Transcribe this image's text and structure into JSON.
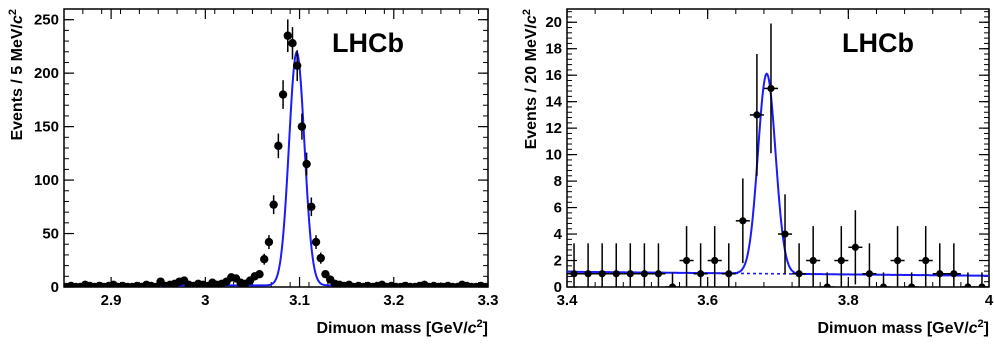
{
  "chart_data": [
    {
      "type": "scatter",
      "panel": "left",
      "title": "",
      "annotation": "LHCb",
      "xlabel": "Dimuon mass [GeV/c²]",
      "ylabel": "Events / 5 MeV/c²",
      "xlim": [
        2.85,
        3.3
      ],
      "ylim": [
        0,
        260
      ],
      "x_ticks": [
        2.9,
        3.0,
        3.1,
        3.2,
        3.3
      ],
      "x_tick_labels": [
        "2.9",
        "3",
        "3.1",
        "3.2",
        "3.3"
      ],
      "y_ticks": [
        0,
        50,
        100,
        150,
        200,
        250
      ],
      "y_tick_labels": [
        "0",
        "50",
        "100",
        "150",
        "200",
        "250"
      ],
      "series": [
        {
          "kind": "data",
          "color": "#000000",
          "x": [
            2.8525,
            2.8575,
            2.8625,
            2.8675,
            2.8725,
            2.8775,
            2.8825,
            2.8875,
            2.8925,
            2.8975,
            2.9025,
            2.9075,
            2.9125,
            2.9175,
            2.9225,
            2.9275,
            2.9325,
            2.9375,
            2.9425,
            2.9475,
            2.9525,
            2.9575,
            2.9625,
            2.9675,
            2.9725,
            2.9775,
            2.9825,
            2.9875,
            2.9925,
            2.9975,
            3.0025,
            3.0075,
            3.0125,
            3.0175,
            3.0225,
            3.0275,
            3.0325,
            3.0375,
            3.0425,
            3.0475,
            3.0525,
            3.0575,
            3.0625,
            3.0675,
            3.0725,
            3.0775,
            3.0825,
            3.0875,
            3.0925,
            3.0975,
            3.1025,
            3.1075,
            3.1125,
            3.1175,
            3.1225,
            3.1275,
            3.1325,
            3.1375,
            3.1425,
            3.1475,
            3.1525,
            3.1575,
            3.1625,
            3.1675,
            3.1725,
            3.1775,
            3.1825,
            3.1875,
            3.1925,
            3.1975,
            3.2025,
            3.2075,
            3.2125,
            3.2175,
            3.2225,
            3.2275,
            3.2325,
            3.2375,
            3.2425,
            3.2475,
            3.2525,
            3.2575,
            3.2625,
            3.2675,
            3.2725,
            3.2775,
            3.2825,
            3.2875,
            3.2925,
            3.2975
          ],
          "y": [
            0,
            1,
            0,
            0,
            2,
            1,
            0,
            1,
            0,
            1,
            2,
            0,
            1,
            0,
            0,
            1,
            0,
            2,
            1,
            0,
            5,
            1,
            2,
            3,
            5,
            6,
            2,
            1,
            3,
            2,
            1,
            4,
            2,
            3,
            5,
            9,
            8,
            4,
            3,
            6,
            10,
            12,
            26,
            42,
            77,
            132,
            180,
            235,
            228,
            207,
            150,
            115,
            75,
            42,
            27,
            12,
            7,
            3,
            2,
            1,
            2,
            0,
            1,
            0,
            1,
            0,
            1,
            2,
            0,
            1,
            0,
            0,
            1,
            0,
            0,
            1,
            2,
            0,
            1,
            0,
            0,
            1,
            0,
            0,
            2,
            1,
            0,
            0,
            1,
            0
          ],
          "y_err": [
            1,
            1,
            1,
            1,
            1.4,
            1,
            1,
            1,
            1,
            1,
            1.4,
            1,
            1,
            1,
            1,
            1,
            1,
            1.4,
            1,
            1,
            2.2,
            1,
            1.4,
            1.7,
            2.2,
            2.4,
            1.4,
            1,
            1.7,
            1.4,
            1,
            2,
            1.4,
            1.7,
            2.2,
            3,
            2.8,
            2,
            1.7,
            2.4,
            3.2,
            3.5,
            5.1,
            6.5,
            8.8,
            11.5,
            13.4,
            15.3,
            15.1,
            14.4,
            12.2,
            10.7,
            8.7,
            6.5,
            5.2,
            3.5,
            2.6,
            1.7,
            1.4,
            1,
            1.4,
            1,
            1,
            1,
            1,
            1,
            1,
            1.4,
            1,
            1,
            1,
            1,
            1,
            1,
            1,
            1,
            1.4,
            1,
            1,
            1,
            1,
            1,
            1,
            1,
            1.4,
            1,
            1,
            1,
            1,
            1
          ]
        },
        {
          "kind": "fit",
          "color": "#1a1aff",
          "model": "gaussian-plus-flat",
          "mean": 3.097,
          "sigma": 0.0082,
          "amplitude": 218,
          "background": 1.5
        }
      ],
      "grid": false,
      "legend": "none"
    },
    {
      "type": "scatter",
      "panel": "right",
      "title": "",
      "annotation": "LHCb",
      "xlabel": "Dimuon mass [GeV/c²]",
      "ylabel": "Events / 20 MeV/c²",
      "xlim": [
        3.4,
        4.0
      ],
      "ylim": [
        0,
        21
      ],
      "x_ticks": [
        3.4,
        3.6,
        3.8,
        4.0
      ],
      "x_tick_labels": [
        "3.4",
        "3.6",
        "3.8",
        "4"
      ],
      "y_ticks": [
        0,
        2,
        4,
        6,
        8,
        10,
        12,
        14,
        16,
        18,
        20
      ],
      "y_tick_labels": [
        "0",
        "2",
        "4",
        "6",
        "8",
        "10",
        "12",
        "14",
        "16",
        "18",
        "20"
      ],
      "series": [
        {
          "kind": "data",
          "color": "#000000",
          "x": [
            3.41,
            3.43,
            3.45,
            3.47,
            3.49,
            3.51,
            3.53,
            3.55,
            3.57,
            3.59,
            3.61,
            3.63,
            3.65,
            3.67,
            3.69,
            3.71,
            3.73,
            3.75,
            3.77,
            3.79,
            3.81,
            3.83,
            3.85,
            3.87,
            3.89,
            3.91,
            3.93,
            3.95,
            3.97,
            3.99
          ],
          "y": [
            1,
            1,
            1,
            1,
            1,
            1,
            1,
            0,
            2,
            1,
            2,
            1,
            5,
            13,
            15,
            4,
            1,
            2,
            0,
            2,
            3,
            1,
            0,
            2,
            0,
            2,
            1,
            1,
            0,
            0
          ],
          "y_err": [
            2.3,
            2.3,
            2.3,
            2.3,
            2.3,
            2.3,
            2.3,
            1.1,
            2.6,
            2.3,
            2.6,
            2.3,
            3.2,
            4.6,
            4.9,
            3.0,
            2.3,
            2.6,
            1.1,
            2.6,
            2.8,
            2.3,
            1.1,
            2.6,
            1.1,
            2.6,
            2.3,
            2.3,
            1.1,
            1.1
          ]
        },
        {
          "kind": "fit",
          "color": "#1a1aff",
          "model": "gaussian-plus-linear",
          "mean": 3.684,
          "sigma": 0.0125,
          "amplitude": 15.1,
          "background_start": 1.15,
          "background_end": 0.85
        },
        {
          "kind": "background",
          "color": "#1a1aff",
          "style": "dashed",
          "background_start": 1.15,
          "background_end": 0.85
        }
      ],
      "grid": false,
      "legend": "none"
    }
  ]
}
